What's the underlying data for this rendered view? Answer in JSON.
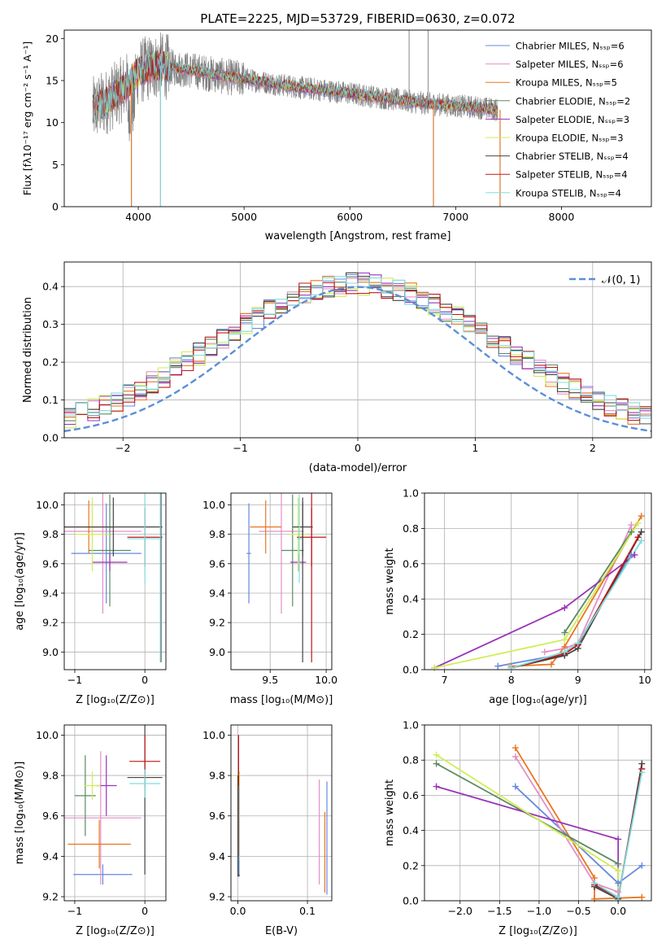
{
  "colors": {
    "Chabrier MILES": "#6688dd",
    "Salpeter MILES": "#e48fc8",
    "Kroupa MILES": "#e8761f",
    "Chabrier ELODIE": "#5c8a63",
    "Salpeter ELODIE": "#9a33b8",
    "Kroupa ELODIE": "#cfee55",
    "Chabrier STELIB": "#444444",
    "Salpeter STELIB": "#c01818",
    "Kroupa STELIB": "#80dddd",
    "normal": "#5b8fd6",
    "grid": "#b0b0b0",
    "spectrum": "#808080"
  },
  "chart_data": [
    {
      "id": "spectrum",
      "type": "line",
      "title": "PLATE=2225, MJD=53729, FIBERID=0630, z=0.072",
      "xlabel": "wavelength [Angstrom, rest frame]",
      "ylabel": "Flux [fλ10⁻¹⁷ erg cm⁻² s⁻¹ A⁻¹]",
      "xlim": [
        3300,
        8850
      ],
      "ylim": [
        0,
        21
      ],
      "xticks": [
        4000,
        5000,
        6000,
        7000,
        8000
      ],
      "yticks": [
        0,
        5,
        10,
        15,
        20
      ],
      "grid": false,
      "legend_position": "top-right",
      "legend": [
        "Chabrier MILES, Nₛₛₚ=6",
        "Salpeter MILES, Nₛₛₚ=6",
        "Kroupa MILES, Nₛₛₚ=5",
        "Chabrier ELODIE, Nₛₛₚ=2",
        "Salpeter ELODIE, Nₛₛₚ=3",
        "Kroupa ELODIE, Nₛₛₚ=3",
        "Chabrier STELIB, Nₛₛₚ=4",
        "Salpeter STELIB, Nₛₛₚ=4",
        "Kroupa STELIB, Nₛₛₚ=4"
      ],
      "continuum": {
        "x": [
          3570,
          3700,
          3800,
          3900,
          4000,
          4100,
          4200,
          4300,
          4400,
          4600,
          4800,
          5000,
          5200,
          5500,
          5800,
          6100,
          6400,
          6700,
          7000,
          7200,
          7400
        ],
        "y": [
          11.5,
          12.5,
          13.5,
          14.5,
          16.0,
          16.5,
          16.8,
          16.6,
          16.4,
          16.0,
          15.5,
          15.2,
          14.8,
          14.2,
          13.8,
          13.3,
          12.8,
          12.3,
          12.0,
          11.8,
          11.5
        ]
      },
      "data_range": [
        3570,
        7400
      ],
      "model_range": [
        3570,
        7400
      ],
      "spikes": [
        {
          "x": 3935,
          "y": 0
        },
        {
          "x": 4210,
          "y": 0
        },
        {
          "x": 6560,
          "y": 21
        },
        {
          "x": 6740,
          "y": 21
        },
        {
          "x": 6790,
          "y": 0
        },
        {
          "x": 7420,
          "y": 0
        }
      ]
    },
    {
      "id": "residuals",
      "type": "line",
      "xlabel": "(data-model)/error",
      "ylabel": "Normed distribution",
      "xlim": [
        -2.5,
        2.5
      ],
      "ylim": [
        0,
        0.465
      ],
      "xticks": [
        -2,
        -1,
        0,
        1,
        2
      ],
      "xticklabels": [
        "−2",
        "−1",
        "0",
        "1",
        "2"
      ],
      "yticks": [
        0.0,
        0.1,
        0.2,
        0.3,
        0.4
      ],
      "grid": true,
      "legend_position": "top-right",
      "legend": [
        "𝒩(0, 1)"
      ],
      "histogram_bin_width": 0.1,
      "series": [
        "Chabrier MILES",
        "Salpeter MILES",
        "Kroupa MILES",
        "Chabrier ELODIE",
        "Salpeter ELODIE",
        "Kroupa ELODIE",
        "Chabrier STELIB",
        "Salpeter STELIB",
        "Kroupa STELIB"
      ],
      "curve": "standard normal pdf"
    },
    {
      "id": "age_vs_Z",
      "type": "scatter",
      "xlabel": "Z [log₁₀(Z/Z⊙)]",
      "ylabel": "age  [log₁₀(age/yr)]",
      "xlim": [
        -1.15,
        0.3
      ],
      "ylim": [
        8.88,
        10.08
      ],
      "xticks": [
        -1,
        0
      ],
      "xticklabels": [
        "−1",
        "0"
      ],
      "yticks": [
        9.0,
        9.2,
        9.4,
        9.6,
        9.8,
        10.0
      ],
      "grid": true,
      "points": [
        {
          "series": "Chabrier MILES",
          "x": -0.55,
          "y": 9.67,
          "xerr": 0.5,
          "yerr": 0.34
        },
        {
          "series": "Salpeter MILES",
          "x": -0.6,
          "y": 9.82,
          "xerr": 0.55,
          "yerr": 0.56
        },
        {
          "series": "Kroupa MILES",
          "x": -0.8,
          "y": 9.85,
          "xerr": 0.35,
          "yerr": 0.18
        },
        {
          "series": "Chabrier ELODIE",
          "x": -0.5,
          "y": 9.69,
          "xerr": 0.3,
          "yerr": 0.38
        },
        {
          "series": "Salpeter ELODIE",
          "x": -0.5,
          "y": 9.61,
          "xerr": 0.25,
          "yerr": 0.06
        },
        {
          "series": "Kroupa ELODIE",
          "x": -0.75,
          "y": 9.8,
          "xerr": 0.25,
          "yerr": 0.25
        },
        {
          "series": "Chabrier STELIB",
          "x": -0.45,
          "y": 9.85,
          "xerr": 0.7,
          "yerr": 0.2
        },
        {
          "series": "Salpeter STELIB",
          "x": 0.0,
          "y": 9.78,
          "xerr": 0.25,
          "yerr": 0.2
        },
        {
          "series": "Kroupa STELIB",
          "x": 0.0,
          "y": 9.77,
          "xerr": 0.25,
          "yerr": 0.3
        }
      ],
      "extra_segments": [
        {
          "series": "Chabrier STELIB",
          "x": 0.23,
          "y0": 8.93,
          "y1": 10.08
        },
        {
          "series": "Kroupa STELIB",
          "x": 0.22,
          "y0": 8.93,
          "y1": 10.08
        }
      ]
    },
    {
      "id": "age_vs_mass",
      "type": "scatter",
      "xlabel": "mass [log₁₀(M/M⊙)]",
      "xlim": [
        9.15,
        10.05
      ],
      "ylim": [
        8.88,
        10.08
      ],
      "xticks": [
        9.5,
        10.0
      ],
      "xticklabels": [
        "9.5",
        "10.0"
      ],
      "yticks": [
        9.0,
        9.2,
        9.4,
        9.6,
        9.8,
        10.0
      ],
      "grid": true,
      "points": [
        {
          "series": "Chabrier MILES",
          "x": 9.31,
          "y": 9.67,
          "xerr": 0.02,
          "yerr": 0.34
        },
        {
          "series": "Salpeter MILES",
          "x": 9.6,
          "y": 9.82,
          "xerr": 0.2,
          "yerr": 0.56
        },
        {
          "series": "Kroupa MILES",
          "x": 9.46,
          "y": 9.85,
          "xerr": 0.14,
          "yerr": 0.18
        },
        {
          "series": "Chabrier ELODIE",
          "x": 9.7,
          "y": 9.69,
          "xerr": 0.1,
          "yerr": 0.38
        },
        {
          "series": "Salpeter ELODIE",
          "x": 9.75,
          "y": 9.61,
          "xerr": 0.07,
          "yerr": 0.06
        },
        {
          "series": "Kroupa ELODIE",
          "x": 9.75,
          "y": 9.8,
          "xerr": 0.08,
          "yerr": 0.25
        },
        {
          "series": "Chabrier STELIB",
          "x": 9.79,
          "y": 9.85,
          "xerr": 0.09,
          "yerr": 0.2
        },
        {
          "series": "Salpeter STELIB",
          "x": 9.87,
          "y": 9.78,
          "xerr": 0.13,
          "yerr": 0.2
        },
        {
          "series": "Kroupa STELIB",
          "x": 9.76,
          "y": 9.77,
          "xerr": 0.02,
          "yerr": 0.3
        }
      ],
      "extra_segments": [
        {
          "series": "Chabrier STELIB",
          "x": 9.79,
          "y0": 8.93,
          "y1": 10.02
        },
        {
          "series": "Salpeter STELIB",
          "x": 9.87,
          "y0": 8.93,
          "y1": 10.08
        }
      ]
    },
    {
      "id": "weight_vs_age",
      "type": "line",
      "xlabel": "age  [log₁₀(age/yr)]",
      "ylabel": "mass weight",
      "xlim": [
        6.7,
        10.1
      ],
      "ylim": [
        0,
        1
      ],
      "xticks": [
        7,
        8,
        9,
        10
      ],
      "yticks": [
        0.0,
        0.2,
        0.4,
        0.6,
        0.8,
        1.0
      ],
      "grid": true,
      "series": [
        {
          "name": "Chabrier MILES",
          "x": [
            7.8,
            8.8,
            9.0,
            9.8
          ],
          "y": [
            0.02,
            0.09,
            0.15,
            0.65
          ]
        },
        {
          "name": "Salpeter MILES",
          "x": [
            8.5,
            8.8,
            9.0,
            9.8
          ],
          "y": [
            0.1,
            0.12,
            0.15,
            0.82
          ]
        },
        {
          "name": "Kroupa MILES",
          "x": [
            8.0,
            8.6,
            8.8,
            9.95
          ],
          "y": [
            0.02,
            0.03,
            0.13,
            0.87
          ]
        },
        {
          "name": "Chabrier ELODIE",
          "x": [
            8.8,
            9.8
          ],
          "y": [
            0.21,
            0.78
          ]
        },
        {
          "name": "Salpeter ELODIE",
          "x": [
            6.85,
            8.8,
            9.85
          ],
          "y": [
            0.01,
            0.35,
            0.65
          ]
        },
        {
          "name": "Kroupa ELODIE",
          "x": [
            6.85,
            8.8,
            9.9
          ],
          "y": [
            0.01,
            0.17,
            0.83
          ]
        },
        {
          "name": "Chabrier STELIB",
          "x": [
            8.0,
            8.8,
            9.0,
            9.95
          ],
          "y": [
            0.01,
            0.08,
            0.12,
            0.78
          ]
        },
        {
          "name": "Salpeter STELIB",
          "x": [
            8.0,
            8.8,
            9.0,
            9.9
          ],
          "y": [
            0.01,
            0.09,
            0.14,
            0.75
          ]
        },
        {
          "name": "Kroupa STELIB",
          "x": [
            8.0,
            8.8,
            9.0,
            9.95
          ],
          "y": [
            0.01,
            0.1,
            0.15,
            0.73
          ]
        }
      ]
    },
    {
      "id": "mass_vs_Z",
      "type": "scatter",
      "xlabel": "Z [log₁₀(Z/Z⊙)]",
      "ylabel": "mass [log₁₀(M/M⊙)]",
      "xlim": [
        -1.15,
        0.3
      ],
      "ylim": [
        9.18,
        10.05
      ],
      "xticks": [
        -1,
        0
      ],
      "xticklabels": [
        "−1",
        "0"
      ],
      "yticks": [
        9.2,
        9.4,
        9.6,
        9.8,
        10.0
      ],
      "grid": true,
      "points": [
        {
          "series": "Chabrier MILES",
          "x": -0.6,
          "y": 9.31,
          "xerr": 0.42,
          "yerr": 0.05
        },
        {
          "series": "Salpeter MILES",
          "x": -0.63,
          "y": 9.59,
          "xerr": 0.58,
          "yerr": 0.33
        },
        {
          "series": "Kroupa MILES",
          "x": -0.65,
          "y": 9.46,
          "xerr": 0.45,
          "yerr": 0.12
        },
        {
          "series": "Chabrier ELODIE",
          "x": -0.85,
          "y": 9.7,
          "xerr": 0.15,
          "yerr": 0.2
        },
        {
          "series": "Salpeter ELODIE",
          "x": -0.55,
          "y": 9.75,
          "xerr": 0.15,
          "yerr": 0.15
        },
        {
          "series": "Kroupa ELODIE",
          "x": -0.75,
          "y": 9.75,
          "xerr": 0.12,
          "yerr": 0.07
        },
        {
          "series": "Chabrier STELIB",
          "x": 0.0,
          "y": 9.79,
          "xerr": 0.25,
          "yerr": 0.48
        },
        {
          "series": "Salpeter STELIB",
          "x": 0.0,
          "y": 9.87,
          "xerr": 0.22,
          "yerr": 0.13
        },
        {
          "series": "Kroupa STELIB",
          "x": 0.0,
          "y": 9.76,
          "xerr": 0.22,
          "yerr": 0.07
        }
      ]
    },
    {
      "id": "mass_vs_ebv",
      "type": "scatter",
      "xlabel": "E(B-V)",
      "xlim": [
        -0.01,
        0.135
      ],
      "ylim": [
        9.18,
        10.05
      ],
      "xticks": [
        0.0,
        0.1
      ],
      "xticklabels": [
        "0.0",
        "0.1"
      ],
      "yticks": [
        9.2,
        9.4,
        9.6,
        9.8,
        10.0
      ],
      "grid": true,
      "points": [
        {
          "series": "Chabrier MILES",
          "x": 0.128,
          "y": 9.49,
          "xerr": 0.0,
          "yerr": 0.28
        },
        {
          "series": "Salpeter MILES",
          "x": 0.117,
          "y": 9.52,
          "xerr": 0.0,
          "yerr": 0.26
        },
        {
          "series": "Kroupa MILES",
          "x": 0.125,
          "y": 9.42,
          "xerr": 0.0,
          "yerr": 0.2
        },
        {
          "series": "Chabrier ELODIE",
          "x": 0.002,
          "y": 9.56,
          "xerr": 0.0,
          "yerr": 0.26
        },
        {
          "series": "Salpeter ELODIE",
          "x": 0.001,
          "y": 9.65,
          "xerr": 0.0,
          "yerr": 0.35
        },
        {
          "series": "Kroupa ELODIE",
          "x": 0.002,
          "y": 9.6,
          "xerr": 0.0,
          "yerr": 0.22
        },
        {
          "series": "Chabrier STELIB",
          "x": 0.0,
          "y": 9.55,
          "xerr": 0.0,
          "yerr": 0.25
        },
        {
          "series": "Salpeter STELIB",
          "x": 0.001,
          "y": 9.7,
          "xerr": 0.0,
          "yerr": 0.3
        },
        {
          "series": "Kroupa STELIB",
          "x": 0.002,
          "y": 9.53,
          "xerr": 0.0,
          "yerr": 0.22
        }
      ]
    },
    {
      "id": "weight_vs_Z",
      "type": "line",
      "xlabel": "Z [log₁₀(Z/Z⊙)]",
      "ylabel": "mass weight",
      "xlim": [
        -2.45,
        0.42
      ],
      "ylim": [
        0,
        1
      ],
      "xticks": [
        -2.0,
        -1.5,
        -1.0,
        -0.5,
        0.0
      ],
      "xticklabels": [
        "−2.0",
        "−1.5",
        "−1.0",
        "−0.5",
        "0.0"
      ],
      "yticks": [
        0.0,
        0.2,
        0.4,
        0.6,
        0.8,
        1.0
      ],
      "grid": true,
      "series": [
        {
          "name": "Chabrier MILES",
          "x": [
            -1.3,
            0.0,
            0.3
          ],
          "y": [
            0.65,
            0.1,
            0.2
          ]
        },
        {
          "name": "Salpeter MILES",
          "x": [
            -1.3,
            -0.3,
            0.0
          ],
          "y": [
            0.82,
            0.1,
            0.05
          ]
        },
        {
          "name": "Kroupa MILES",
          "x": [
            -1.3,
            -0.3,
            -0.3,
            0.3
          ],
          "y": [
            0.87,
            0.13,
            0.01,
            0.02
          ]
        },
        {
          "name": "Chabrier ELODIE",
          "x": [
            -2.3,
            0.0
          ],
          "y": [
            0.78,
            0.21
          ]
        },
        {
          "name": "Salpeter ELODIE",
          "x": [
            -2.3,
            0.0,
            0.0
          ],
          "y": [
            0.65,
            0.35,
            0.01
          ]
        },
        {
          "name": "Kroupa ELODIE",
          "x": [
            -2.3,
            0.0,
            0.0
          ],
          "y": [
            0.83,
            0.17,
            0.01
          ]
        },
        {
          "name": "Chabrier STELIB",
          "x": [
            -0.3,
            0.0,
            0.3
          ],
          "y": [
            0.08,
            0.01,
            0.78
          ]
        },
        {
          "name": "Salpeter STELIB",
          "x": [
            -0.3,
            0.0,
            0.3
          ],
          "y": [
            0.09,
            0.02,
            0.75
          ]
        },
        {
          "name": "Kroupa STELIB",
          "x": [
            -0.3,
            0.0,
            0.3
          ],
          "y": [
            0.1,
            0.02,
            0.73
          ]
        }
      ]
    }
  ]
}
